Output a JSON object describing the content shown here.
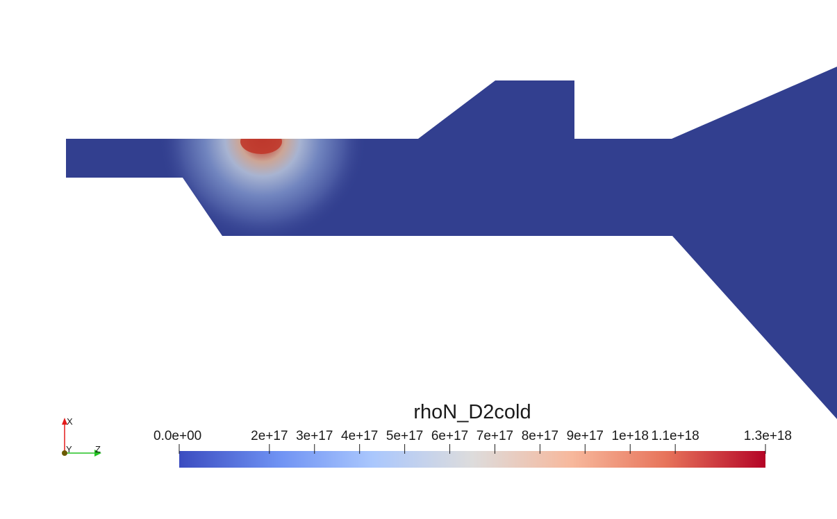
{
  "colorbar": {
    "title": "rhoN_D2cold",
    "tick_labels": [
      "0.0e+00",
      "2e+17",
      "3e+17",
      "4e+17",
      "5e+17",
      "6e+17",
      "7e+17",
      "8e+17",
      "9e+17",
      "1e+18",
      "1.1e+18",
      "1.3e+18"
    ],
    "range": [
      0,
      1.3e+18
    ],
    "colormap": [
      "#3b4cc0",
      "#6f92f3",
      "#aac7fd",
      "#dddcdc",
      "#f7b89c",
      "#e7745b",
      "#b40426"
    ]
  },
  "geometry_colors": {
    "domain_fill": "#323f8f",
    "hotspot": "#c33a2a"
  },
  "orientation_axes": {
    "x_label": "X",
    "y_label": "Y",
    "z_label": "Z",
    "x_color": "#e31b1b",
    "y_color": "#6b6b00",
    "z_color": "#22c222"
  }
}
